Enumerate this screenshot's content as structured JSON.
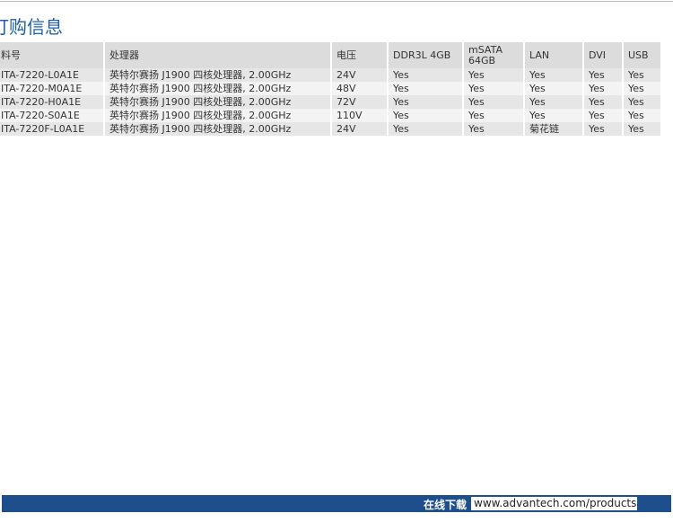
{
  "header": {
    "title": "订购信息"
  },
  "table": {
    "columns": [
      "料号",
      "处理器",
      "电压",
      "DDR3L 4GB",
      "mSATA 64GB",
      "LAN",
      "DVI",
      "USB"
    ],
    "rows": [
      [
        "ITA-7220-L0A1E",
        "英特尔赛扬 J1900 四核处理器, 2.00GHz",
        "24V",
        "Yes",
        "Yes",
        "Yes",
        "Yes",
        "Yes"
      ],
      [
        "ITA-7220-M0A1E",
        "英特尔赛扬 J1900 四核处理器, 2.00GHz",
        "48V",
        "Yes",
        "Yes",
        "Yes",
        "Yes",
        "Yes"
      ],
      [
        "ITA-7220-H0A1E",
        "英特尔赛扬 J1900 四核处理器, 2.00GHz",
        "72V",
        "Yes",
        "Yes",
        "Yes",
        "Yes",
        "Yes"
      ],
      [
        "ITA-7220-S0A1E",
        "英特尔赛扬 J1900 四核处理器, 2.00GHz",
        "110V",
        "Yes",
        "Yes",
        "Yes",
        "Yes",
        "Yes"
      ],
      [
        "ITA-7220F-L0A1E",
        "英特尔赛扬 J1900 四核处理器, 2.00GHz",
        "24V",
        "Yes",
        "Yes",
        "菊花链",
        "Yes",
        "Yes"
      ]
    ]
  },
  "footer": {
    "label": "在线下载",
    "url": "www.advantech.com/products"
  }
}
